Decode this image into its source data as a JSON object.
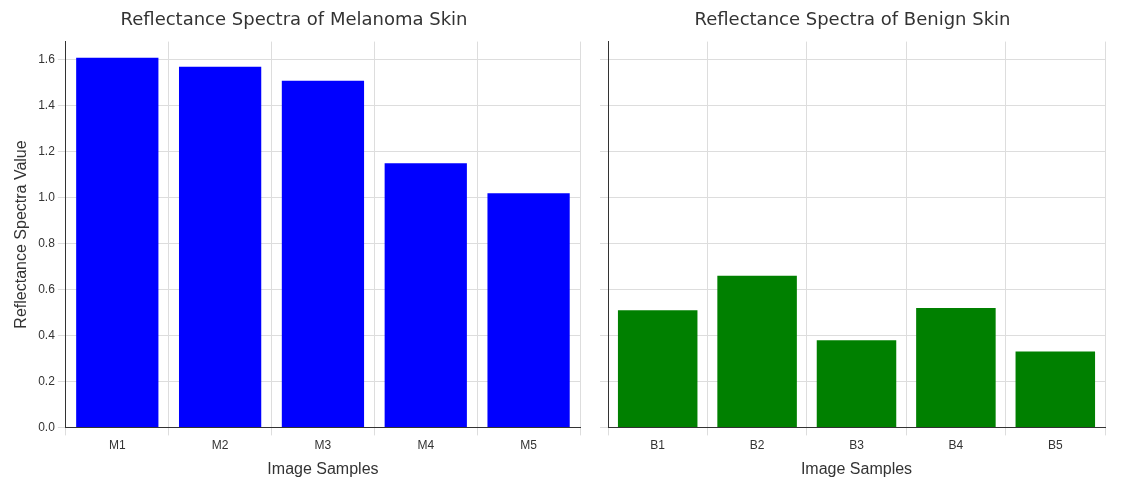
{
  "chart_data": [
    {
      "type": "bar",
      "title": "Reflectance Spectra of Melanoma Skin",
      "xlabel": "Image Samples",
      "ylabel": "Reflectance Spectra Value",
      "categories": [
        "M1",
        "M2",
        "M3",
        "M4",
        "M5"
      ],
      "values": [
        1.61,
        1.57,
        1.51,
        1.15,
        1.02
      ],
      "color": "#0000ff",
      "ylim": [
        0,
        1.68
      ],
      "yticks": [
        {
          "value": 0,
          "label": "0.0"
        },
        0.2,
        0.4,
        0.6,
        0.8,
        {
          "value": 1,
          "label": "1.0"
        },
        1.2,
        1.4,
        1.6
      ],
      "grid": true
    },
    {
      "type": "bar",
      "title": "Reflectance Spectra of Benign Skin",
      "xlabel": "Image Samples",
      "categories": [
        "B1",
        "B2",
        "B3",
        "B4",
        "B5"
      ],
      "values": [
        0.51,
        0.66,
        0.38,
        0.52,
        0.33
      ],
      "color": "#008000",
      "ylim": [
        0,
        1.68
      ],
      "yticks": [
        0,
        0.2,
        0.4,
        0.6,
        0.8,
        1,
        1.2,
        1.4,
        1.6
      ],
      "grid": true,
      "tick_labels": "x"
    }
  ]
}
